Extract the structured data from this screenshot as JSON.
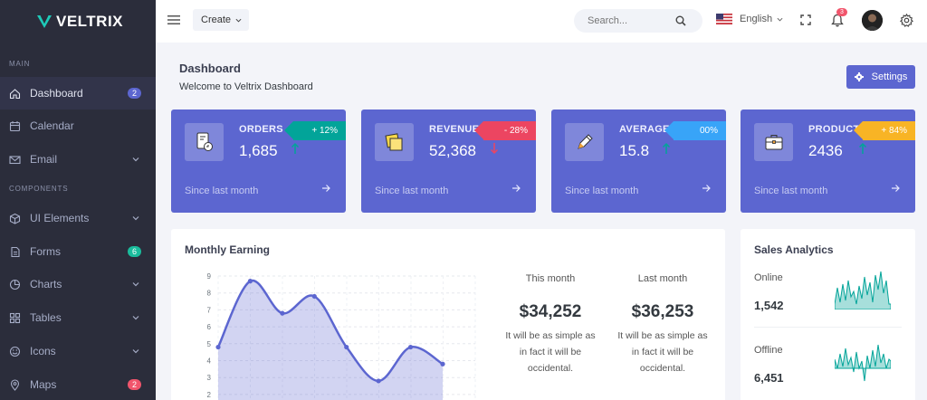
{
  "brand": {
    "name": "VELTRIX"
  },
  "sidebar": {
    "sections": [
      "MAIN",
      "COMPONENTS"
    ],
    "items": [
      {
        "label": "Dashboard",
        "icon": "home-icon",
        "badge": "2",
        "badge_color": "#5c66d0",
        "active": true
      },
      {
        "label": "Calendar",
        "icon": "calendar-icon"
      },
      {
        "label": "Email",
        "icon": "mail-icon",
        "expandable": true
      },
      {
        "label": "UI Elements",
        "icon": "cube-icon",
        "expandable": true
      },
      {
        "label": "Forms",
        "icon": "file-icon",
        "badge": "6",
        "badge_color": "#1abc9c"
      },
      {
        "label": "Charts",
        "icon": "pie-chart-icon",
        "expandable": true
      },
      {
        "label": "Tables",
        "icon": "grid-icon",
        "expandable": true
      },
      {
        "label": "Icons",
        "icon": "smile-icon",
        "expandable": true
      },
      {
        "label": "Maps",
        "icon": "map-pin-icon",
        "badge": "2",
        "badge_color": "#f1556c"
      }
    ]
  },
  "topbar": {
    "create_label": "Create",
    "search_placeholder": "Search...",
    "language": "English",
    "notification_count": "3"
  },
  "page": {
    "title": "Dashboard",
    "subtitle": "Welcome to Veltrix Dashboard",
    "settings_label": "Settings"
  },
  "stats": [
    {
      "label": "ORDERS",
      "value": "1,685",
      "badge": "+ 12%",
      "badge_color": "#02a499",
      "trend": "up",
      "trend_color": "#02a499",
      "since": "Since last month"
    },
    {
      "label": "REVENUE",
      "value": "52,368",
      "badge": "- 28%",
      "badge_color": "#ec4561",
      "trend": "down",
      "trend_color": "#ec4561",
      "since": "Since last month"
    },
    {
      "label": "AVERAGE PRICE",
      "value": "15.8",
      "badge": "00%",
      "badge_color": "#38a4f8",
      "trend": "up",
      "trend_color": "#02a499",
      "since": "Since last month"
    },
    {
      "label": "PRODUCT SOLD",
      "value": "2436",
      "badge": "+ 84%",
      "badge_color": "#f8b425",
      "trend": "up",
      "trend_color": "#02a499",
      "since": "Since last month"
    }
  ],
  "earning": {
    "title": "Monthly Earning",
    "columns": [
      {
        "label": "This month",
        "value": "$34,252",
        "desc_lines": [
          "It will be as simple as",
          "in fact it will be",
          "occidental."
        ]
      },
      {
        "label": "Last month",
        "value": "$36,253",
        "desc_lines": [
          "It will be as simple as",
          "in fact it will be",
          "occidental."
        ]
      }
    ]
  },
  "chart_data": {
    "type": "area",
    "x": [
      1,
      2,
      3,
      4,
      5,
      6,
      7,
      8
    ],
    "values": [
      4.8,
      8.7,
      6.8,
      7.8,
      4.8,
      2.8,
      4.8,
      3.8
    ],
    "yticks": [
      "2",
      "3",
      "4",
      "5",
      "6",
      "7",
      "8",
      "9"
    ],
    "ylim": [
      2,
      9
    ],
    "grid": true,
    "color": "#5c66d0"
  },
  "sales": {
    "title": "Sales Analytics",
    "items": [
      {
        "label": "Online",
        "value": "1,542"
      },
      {
        "label": "Offline",
        "value": "6,451"
      }
    ],
    "spark_color": "#02a499"
  }
}
